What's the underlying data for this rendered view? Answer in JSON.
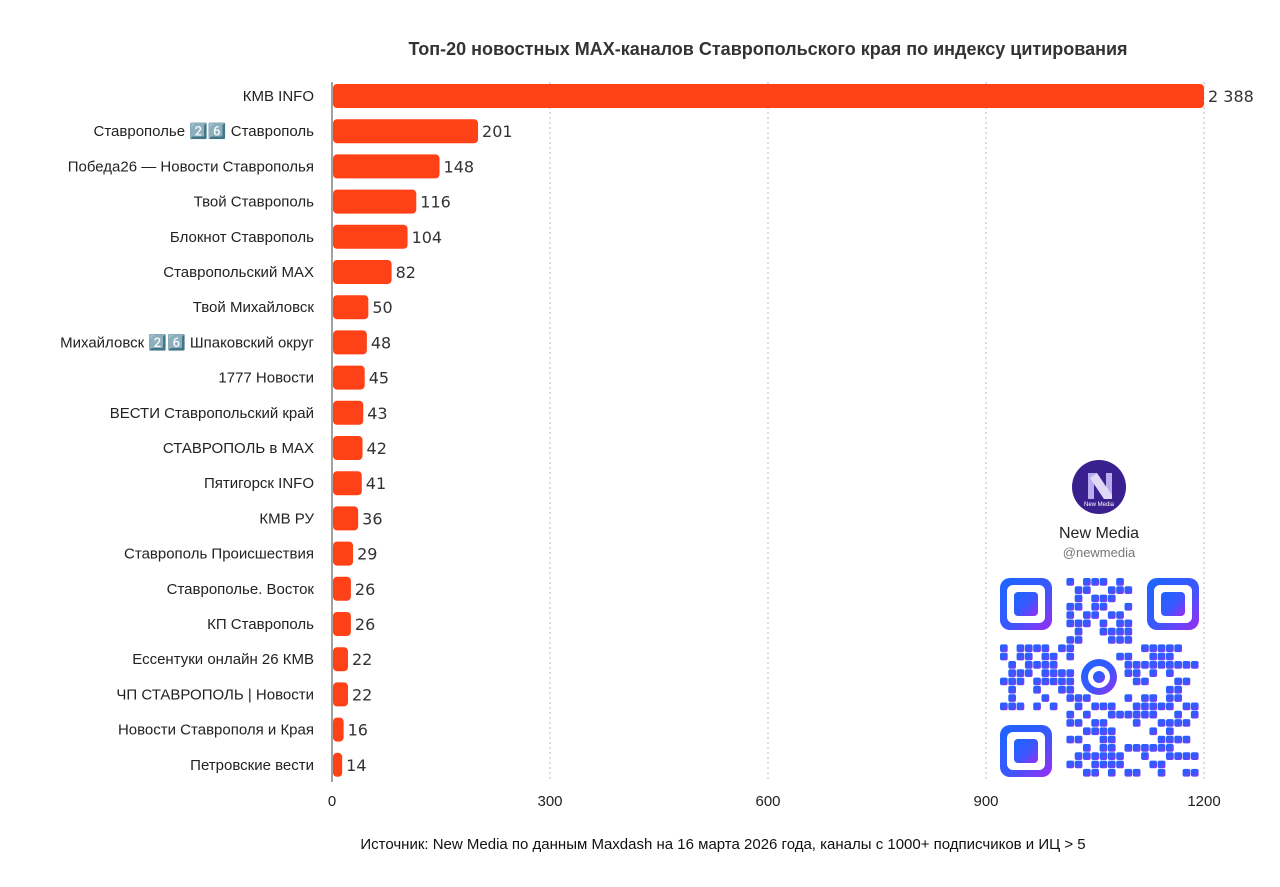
{
  "chart_data": {
    "type": "bar",
    "orientation": "horizontal",
    "title": "Топ-20 новостных MAX-каналов Ставропольского края по индексу цитирования",
    "categories": [
      "КМВ INFO",
      "Ставрополье 2️⃣6️⃣ Ставрополь",
      "Победа26 — Новости Ставрополья",
      "Твой Ставрополь",
      "Блокнот Ставрополь",
      "Ставропольский MAX",
      "Твой Михайловск",
      "Михайловск 2️⃣6️⃣ Шпаковский округ",
      "1777 Новости",
      "ВЕСТИ Ставропольский край",
      "СТАВРОПОЛЬ в MAX",
      "Пятигорск INFO",
      "КМВ РУ",
      "Ставрополь Происшествия",
      "Ставрополье. Восток",
      "КП Ставрополь",
      "Ессентуки онлайн 26 КМВ",
      "ЧП СТАВРОПОЛЬ | Новости",
      "Новости Ставрополя и Края",
      "Петровские вести"
    ],
    "values": [
      2388,
      201,
      148,
      116,
      104,
      82,
      50,
      48,
      45,
      43,
      42,
      41,
      36,
      29,
      26,
      26,
      22,
      22,
      16,
      14
    ],
    "value_labels": [
      "2 388",
      "201",
      "148",
      "116",
      "104",
      "82",
      "50",
      "48",
      "45",
      "43",
      "42",
      "41",
      "36",
      "29",
      "26",
      "26",
      "22",
      "22",
      "16",
      "14"
    ],
    "xlim": [
      0,
      1200
    ],
    "xticks": [
      0,
      300,
      600,
      900,
      1200
    ],
    "grid": true,
    "bar_color": "#ff4117"
  },
  "branding": {
    "name": "New Media",
    "handle": "@newmedia",
    "logo_text": "New Media"
  },
  "source_note": "Источник: New Media по данным Maxdash на 16 марта 2026 года, каналы с 1000+ подписчиков и ИЦ > 5"
}
